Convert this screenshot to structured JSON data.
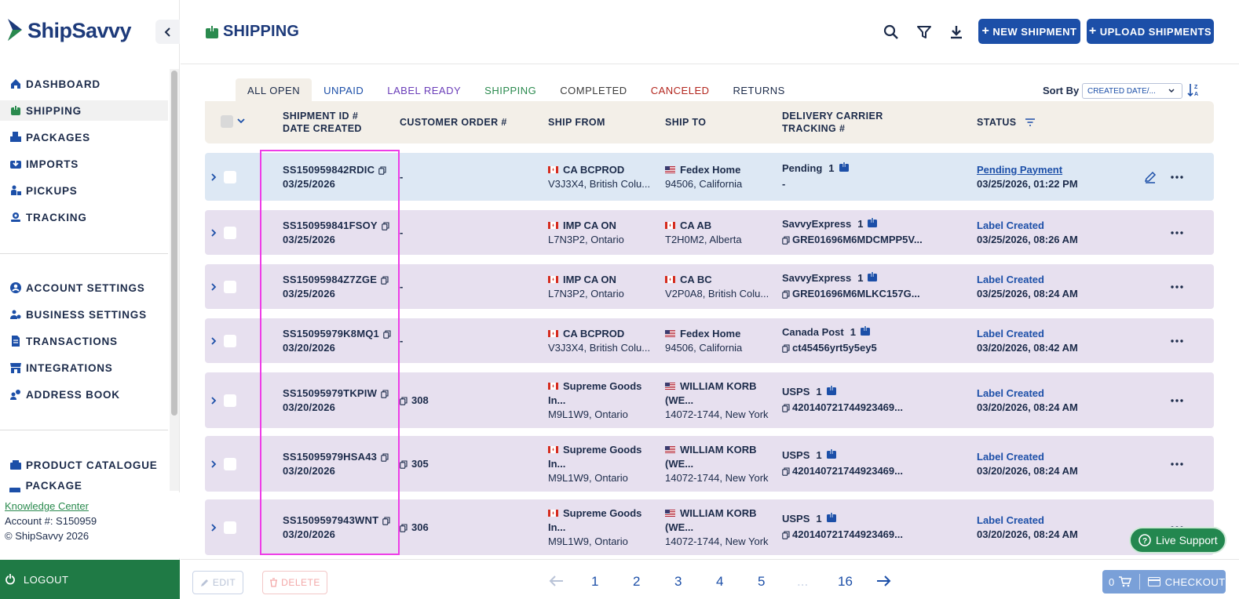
{
  "brand": {
    "name": "ShipSavvy"
  },
  "sidebar": {
    "items": [
      {
        "label": "DASHBOARD",
        "icon": "home-icon"
      },
      {
        "label": "SHIPPING",
        "icon": "shipping-box-icon"
      },
      {
        "label": "PACKAGES",
        "icon": "packages-icon"
      },
      {
        "label": "IMPORTS",
        "icon": "import-icon"
      },
      {
        "label": "PICKUPS",
        "icon": "pickup-icon"
      },
      {
        "label": "TRACKING",
        "icon": "tracking-icon"
      }
    ],
    "settings": [
      {
        "label": "ACCOUNT SETTINGS",
        "icon": "account-icon"
      },
      {
        "label": "BUSINESS SETTINGS",
        "icon": "business-icon"
      },
      {
        "label": "TRANSACTIONS",
        "icon": "document-icon"
      },
      {
        "label": "INTEGRATIONS",
        "icon": "store-icon"
      },
      {
        "label": "ADDRESS BOOK",
        "icon": "address-book-icon"
      }
    ],
    "catalog": [
      {
        "label": "PRODUCT CATALOGUE",
        "icon": "catalogue-icon"
      },
      {
        "label": "PACKAGE PREFERENCES",
        "icon": "preferences-icon"
      }
    ],
    "footer": {
      "knowledge_center": "Knowledge Center",
      "account": "Account #: S150959",
      "copyright": "© ShipSavvy 2026"
    },
    "logout": "LOGOUT"
  },
  "header": {
    "title": "SHIPPING",
    "new_shipment": "NEW SHIPMENT",
    "upload_shipments": "UPLOAD SHIPMENTS"
  },
  "tabs": [
    {
      "label": "ALL OPEN",
      "color": "#1c2b4a"
    },
    {
      "label": "UNPAID",
      "color": "#1c4fa8"
    },
    {
      "label": "LABEL READY",
      "color": "#6a3db8"
    },
    {
      "label": "SHIPPING",
      "color": "#2a8a4e"
    },
    {
      "label": "COMPLETED",
      "color": "#3c3c3c"
    },
    {
      "label": "CANCELED",
      "color": "#b3261e"
    },
    {
      "label": "RETURNS",
      "color": "#1c2b4a"
    }
  ],
  "sort": {
    "label": "Sort By",
    "value": "CREATED DATE/..."
  },
  "columns": {
    "shipment_id": "SHIPMENT ID #",
    "date_created": "DATE CREATED",
    "customer_order": "CUSTOMER ORDER #",
    "ship_from": "SHIP FROM",
    "ship_to": "SHIP TO",
    "carrier": "DELIVERY CARRIER",
    "tracking": "TRACKING #",
    "status": "STATUS"
  },
  "rows": [
    {
      "id": "SS150959842RDIC",
      "date": "03/25/2026",
      "order": "-",
      "order_copy": false,
      "from_flag": "CA",
      "from_name": "CA BCPROD",
      "from_name2": "",
      "from_addr": "V3J3X4, British Colu...",
      "to_flag": "US",
      "to_name": "Fedex Home",
      "to_name2": "",
      "to_addr": "94506, California",
      "carrier": "Pending",
      "pkgs": "1",
      "tracking": "-",
      "tracking_copy": false,
      "status": "Pending Payment",
      "status_time": "03/25/2026, 01:22 PM"
    },
    {
      "id": "SS150959841FSOY",
      "date": "03/25/2026",
      "order": "-",
      "order_copy": false,
      "from_flag": "CA",
      "from_name": "IMP CA ON",
      "from_name2": "",
      "from_addr": "L7N3P2, Ontario",
      "to_flag": "CA",
      "to_name": "CA AB",
      "to_name2": "",
      "to_addr": "T2H0M2, Alberta",
      "carrier": "SavvyExpress",
      "pkgs": "1",
      "tracking": "GRE01696M6MDCMPP5V...",
      "tracking_copy": true,
      "status": "Label Created",
      "status_time": "03/25/2026, 08:26 AM"
    },
    {
      "id": "SS15095984Z7ZGE",
      "date": "03/25/2026",
      "order": "-",
      "order_copy": false,
      "from_flag": "CA",
      "from_name": "IMP CA ON",
      "from_name2": "",
      "from_addr": "L7N3P2, Ontario",
      "to_flag": "CA",
      "to_name": "CA BC",
      "to_name2": "",
      "to_addr": "V2P0A8, British Colu...",
      "carrier": "SavvyExpress",
      "pkgs": "1",
      "tracking": "GRE01696M6MLKC157G...",
      "tracking_copy": true,
      "status": "Label Created",
      "status_time": "03/25/2026, 08:24 AM"
    },
    {
      "id": "SS15095979K8MQ1",
      "date": "03/20/2026",
      "order": "-",
      "order_copy": false,
      "from_flag": "CA",
      "from_name": "CA BCPROD",
      "from_name2": "",
      "from_addr": "V3J3X4, British Colu...",
      "to_flag": "US",
      "to_name": "Fedex Home",
      "to_name2": "",
      "to_addr": "94506, California",
      "carrier": "Canada Post",
      "pkgs": "1",
      "tracking": "ct45456yrt5y5ey5",
      "tracking_copy": true,
      "status": "Label Created",
      "status_time": "03/20/2026, 08:42 AM"
    },
    {
      "id": "SS15095979TKPIW",
      "date": "03/20/2026",
      "order": "308",
      "order_copy": true,
      "from_flag": "CA",
      "from_name": "Supreme Goods",
      "from_name2": "In...",
      "from_addr": "M9L1W9, Ontario",
      "to_flag": "US",
      "to_name": "WILLIAM KORB",
      "to_name2": "(WE...",
      "to_addr": "14072-1744, New York",
      "carrier": "USPS",
      "pkgs": "1",
      "tracking": "420140721744923469...",
      "tracking_copy": true,
      "status": "Label Created",
      "status_time": "03/20/2026, 08:24 AM"
    },
    {
      "id": "SS15095979HSA43",
      "date": "03/20/2026",
      "order": "305",
      "order_copy": true,
      "from_flag": "CA",
      "from_name": "Supreme Goods",
      "from_name2": "In...",
      "from_addr": "M9L1W9, Ontario",
      "to_flag": "US",
      "to_name": "WILLIAM KORB",
      "to_name2": "(WE...",
      "to_addr": "14072-1744, New York",
      "carrier": "USPS",
      "pkgs": "1",
      "tracking": "420140721744923469...",
      "tracking_copy": true,
      "status": "Label Created",
      "status_time": "03/20/2026, 08:24 AM"
    },
    {
      "id": "SS1509597943WNT",
      "date": "03/20/2026",
      "order": "306",
      "order_copy": true,
      "from_flag": "CA",
      "from_name": "Supreme Goods",
      "from_name2": "In...",
      "from_addr": "M9L1W9, Ontario",
      "to_flag": "US",
      "to_name": "WILLIAM KORB",
      "to_name2": "(WE...",
      "to_addr": "14072-1744, New York",
      "carrier": "USPS",
      "pkgs": "1",
      "tracking": "420140721744923469...",
      "tracking_copy": true,
      "status": "Label Created",
      "status_time": "03/20/2026, 08:24 AM"
    }
  ],
  "footer": {
    "edit": "EDIT",
    "delete": "DELETE",
    "pages": [
      "1",
      "2",
      "3",
      "4",
      "5",
      "...",
      "16"
    ],
    "live_support": "Live Support",
    "cart_count": "0",
    "checkout": "CHECKOUT"
  },
  "colors": {
    "brand_blue": "#1c4fa8",
    "brand_green": "#1f7a45",
    "row_first": "#dde8f4",
    "row_other": "#e7e0ef",
    "highlight": "#ee3de7"
  }
}
